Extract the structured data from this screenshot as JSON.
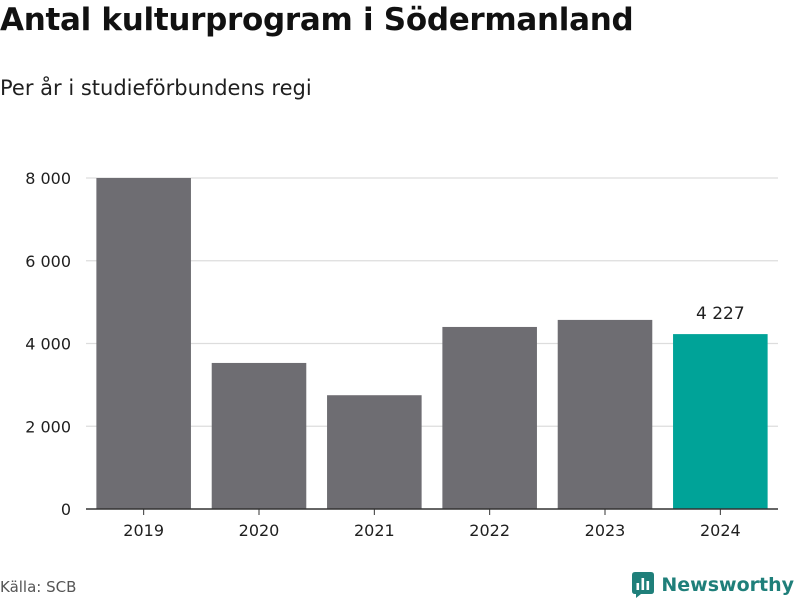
{
  "header": {
    "title": "Antal kulturprogram i Södermanland",
    "subtitle": "Per år i studieförbundens regi"
  },
  "footer": {
    "source": "Källa: SCB",
    "brand": "Newsworthy"
  },
  "colors": {
    "bar": "#6e6d72",
    "highlight": "#00a398",
    "grid": "#dddddd",
    "axis": "#333333",
    "text": "#1f1f1f",
    "brand": "#1f7f7a"
  },
  "chart_data": {
    "type": "bar",
    "title": "Antal kulturprogram i Södermanland",
    "subtitle": "Per år i studieförbundens regi",
    "xlabel": "",
    "ylabel": "",
    "categories": [
      "2019",
      "2020",
      "2021",
      "2022",
      "2023",
      "2024"
    ],
    "values": [
      8000,
      3530,
      2750,
      4400,
      4570,
      4227
    ],
    "highlight_category": "2024",
    "data_labels": [
      {
        "category": "2024",
        "text": "4 227"
      }
    ],
    "ylim": [
      0,
      8000
    ],
    "yticks": [
      0,
      2000,
      4000,
      6000,
      8000
    ],
    "ytick_labels": [
      "0",
      "2 000",
      "4 000",
      "6 000",
      "8 000"
    ],
    "grid": true,
    "legend": "none"
  }
}
